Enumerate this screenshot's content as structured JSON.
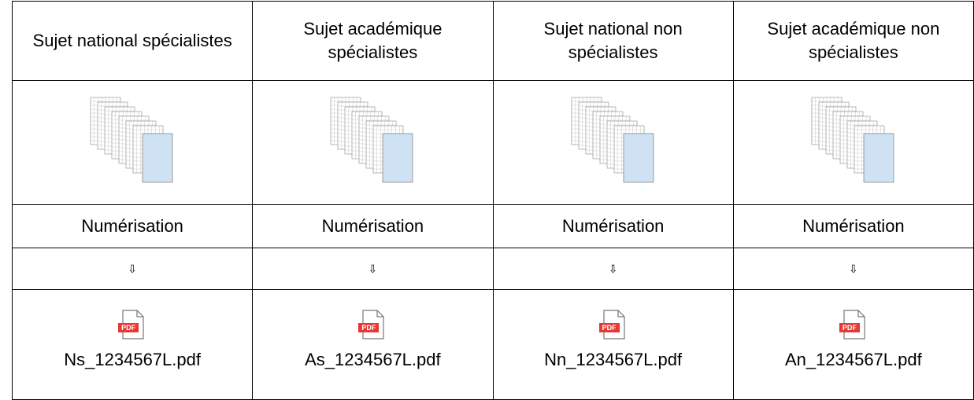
{
  "columns": [
    {
      "header": "Sujet national spécialistes",
      "step": "Numérisation",
      "arrow": "⇩",
      "icon": "PDF",
      "file": "Ns_1234567L.pdf"
    },
    {
      "header": "Sujet académique spécialistes",
      "step": "Numérisation",
      "arrow": "⇩",
      "icon": "PDF",
      "file": "As_1234567L.pdf"
    },
    {
      "header": "Sujet national non spécialistes",
      "step": "Numérisation",
      "arrow": "⇩",
      "icon": "PDF",
      "file": "Nn_1234567L.pdf"
    },
    {
      "header": "Sujet académique non spécialistes",
      "step": "Numérisation",
      "arrow": "⇩",
      "icon": "PDF",
      "file": "An_1234567L.pdf"
    }
  ]
}
